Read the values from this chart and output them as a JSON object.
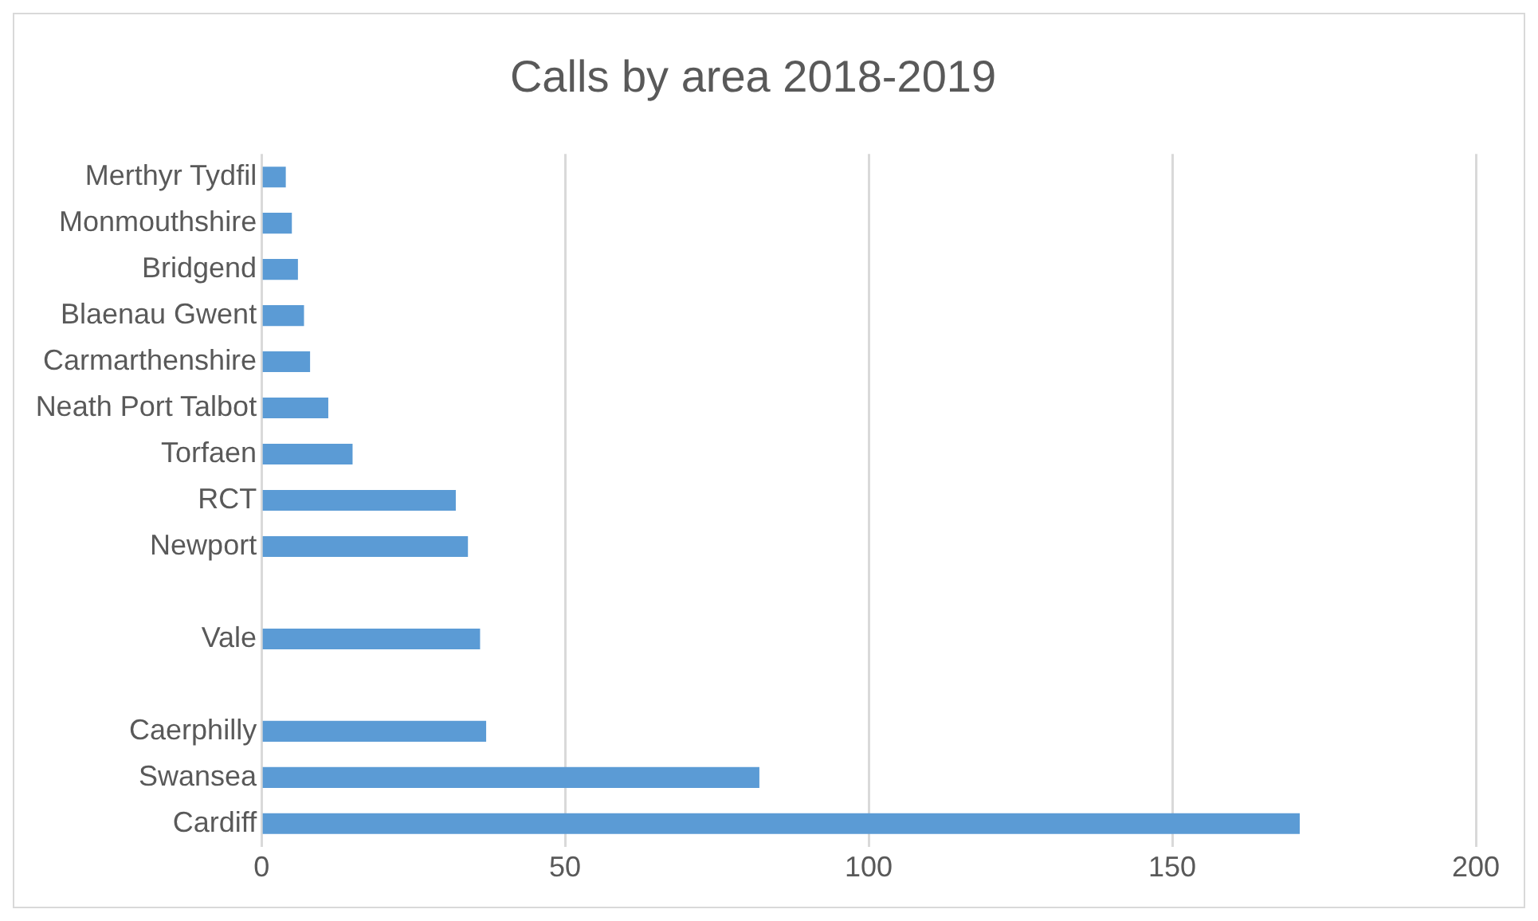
{
  "chart_data": {
    "type": "bar",
    "orientation": "horizontal",
    "title": "Calls by area 2018-2019",
    "categories": [
      "Merthyr Tydfil",
      "Monmouthshire",
      "Bridgend",
      "Blaenau Gwent",
      "Carmarthenshire",
      "Neath Port Talbot",
      "Torfaen",
      "RCT",
      "Newport",
      null,
      "Vale",
      null,
      "Caerphilly",
      "Swansea",
      "Cardiff"
    ],
    "values": [
      4,
      5,
      6,
      7,
      8,
      11,
      15,
      32,
      34,
      null,
      36,
      null,
      37,
      82,
      171
    ],
    "color": "#5b9bd5",
    "xlim": [
      0,
      200
    ],
    "xticks": [
      0,
      50,
      100,
      150,
      200
    ],
    "grid": "x",
    "legend": false
  }
}
